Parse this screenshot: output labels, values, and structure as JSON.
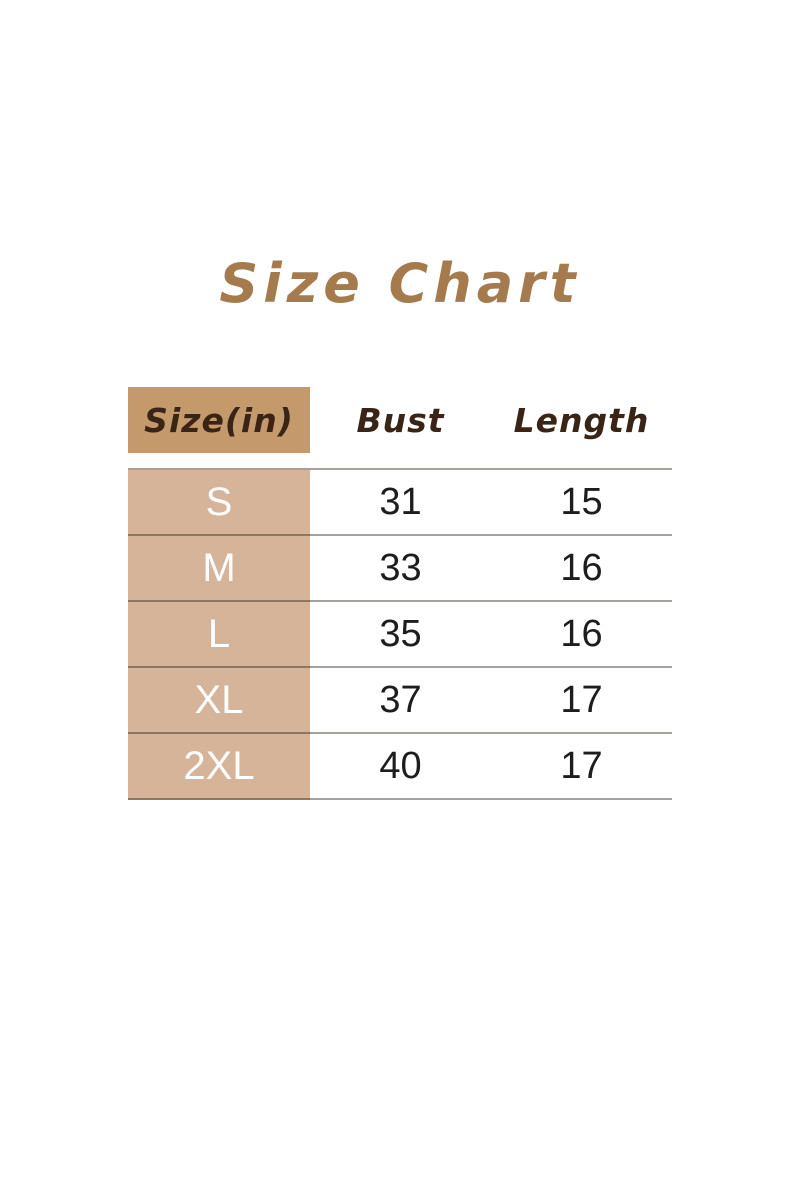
{
  "title": "Size Chart",
  "table": {
    "headers": {
      "size": "Size(in)",
      "bust": "Bust",
      "length": "Length"
    },
    "rows": [
      {
        "size": "S",
        "bust": "31",
        "length": "15"
      },
      {
        "size": "M",
        "bust": "33",
        "length": "16"
      },
      {
        "size": "L",
        "bust": "35",
        "length": "16"
      },
      {
        "size": "XL",
        "bust": "37",
        "length": "17"
      },
      {
        "size": "2XL",
        "bust": "40",
        "length": "17"
      }
    ]
  },
  "colors": {
    "title_text": "#A57B4D",
    "header_text": "#3A2416",
    "header_cell_bg": "#C49A6C",
    "size_column_bg": "#D5B499",
    "size_text": "#FFFFFF",
    "value_text": "#1D1D1D",
    "divider_line": "#A9A499",
    "background": "#FFFFFF"
  },
  "chart_data": {
    "type": "table",
    "title": "Size Chart",
    "columns": [
      "Size(in)",
      "Bust",
      "Length"
    ],
    "rows": [
      [
        "S",
        31,
        15
      ],
      [
        "M",
        33,
        16
      ],
      [
        "L",
        35,
        16
      ],
      [
        "XL",
        37,
        17
      ],
      [
        "2XL",
        40,
        17
      ]
    ]
  }
}
